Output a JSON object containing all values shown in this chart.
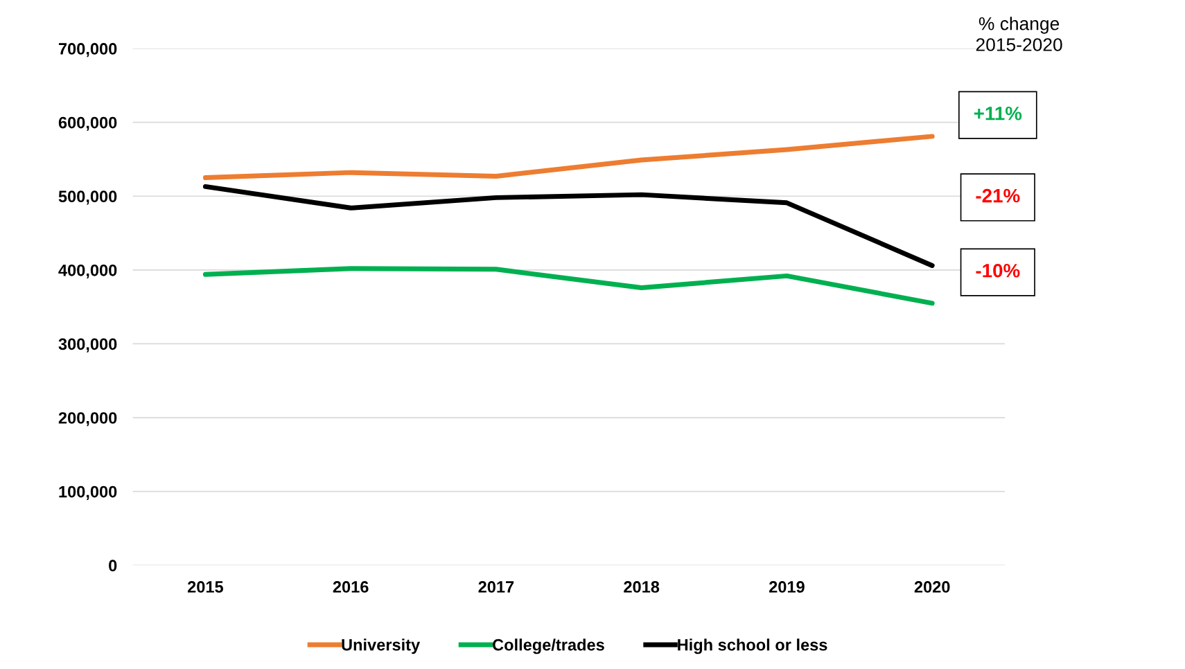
{
  "chart_data": {
    "type": "line",
    "categories": [
      "2015",
      "2016",
      "2017",
      "2018",
      "2019",
      "2020"
    ],
    "series": [
      {
        "name": "University",
        "color": "#ed7d31",
        "values": [
          525000,
          532000,
          527000,
          549000,
          563000,
          581000
        ]
      },
      {
        "name": "College/trades",
        "color": "#00b050",
        "values": [
          394000,
          402000,
          401000,
          376000,
          392000,
          355000
        ]
      },
      {
        "name": "High school or less",
        "color": "#000000",
        "values": [
          513000,
          484000,
          498000,
          502000,
          491000,
          406000
        ]
      }
    ],
    "ylim": [
      0,
      700000
    ],
    "yticks": [
      {
        "value": 0,
        "label": "0"
      },
      {
        "value": 100000,
        "label": "100,000"
      },
      {
        "value": 200000,
        "label": "200,000"
      },
      {
        "value": 300000,
        "label": "300,000"
      },
      {
        "value": 400000,
        "label": "400,000"
      },
      {
        "value": 500000,
        "label": "500,000"
      },
      {
        "value": 600000,
        "label": "600,000"
      },
      {
        "value": 700000,
        "label": "700,000"
      }
    ],
    "grid": "y",
    "legend": "bottom",
    "marker": "none",
    "line_style": "solid",
    "annotations": [
      "% change\n2015-2020",
      "+11%",
      "-21%",
      "-10%"
    ]
  }
}
